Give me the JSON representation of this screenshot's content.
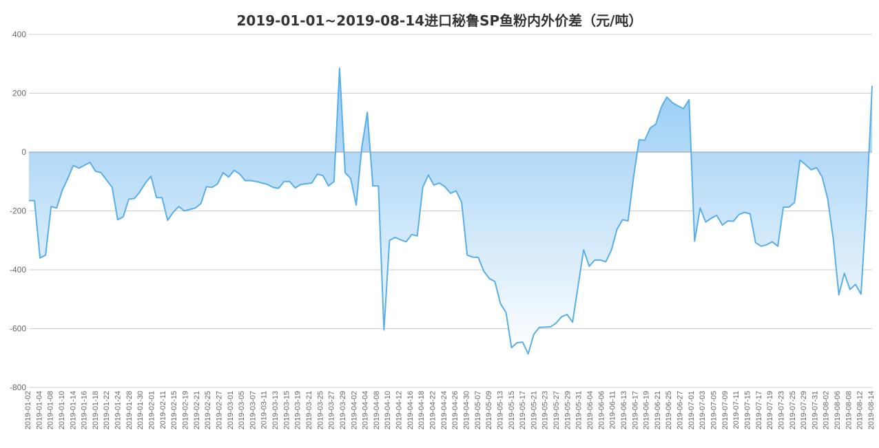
{
  "chart_data": {
    "type": "area",
    "title": "2019-01-01~2019-08-14进口秘鲁SP鱼粉内外价差（元/吨）",
    "xlabel": "",
    "ylabel": "",
    "ylim": [
      -800,
      400
    ],
    "yticks": [
      400,
      200,
      0,
      -200,
      -400,
      -600,
      -800
    ],
    "grid": true,
    "legend": "none",
    "colors": {
      "line": "#5aaee8",
      "fill_top": "#8ec7f3",
      "fill_bottom": "#ffffff",
      "grid": "#cccccc",
      "zero_line": "#999999"
    },
    "tick_labels": [
      "2019-01-02",
      "2019-01-04",
      "2019-01-08",
      "2019-01-10",
      "2019-01-14",
      "2019-01-16",
      "2019-01-18",
      "2019-01-22",
      "2019-01-24",
      "2019-01-28",
      "2019-01-30",
      "2019-02-01",
      "2019-02-11",
      "2019-02-15",
      "2019-02-19",
      "2019-02-21",
      "2019-02-25",
      "2019-02-27",
      "2019-03-01",
      "2019-03-05",
      "2019-03-07",
      "2019-03-11",
      "2019-03-13",
      "2019-03-15",
      "2019-03-19",
      "2019-03-21",
      "2019-03-25",
      "2019-03-27",
      "2019-03-29",
      "2019-04-02",
      "2019-04-04",
      "2019-04-08",
      "2019-04-10",
      "2019-04-12",
      "2019-04-16",
      "2019-04-18",
      "2019-04-22",
      "2019-04-24",
      "2019-04-26",
      "2019-04-30",
      "2019-05-07",
      "2019-05-09",
      "2019-05-13",
      "2019-05-15",
      "2019-05-17",
      "2019-05-21",
      "2019-05-23",
      "2019-05-27",
      "2019-05-29",
      "2019-05-31",
      "2019-06-04",
      "2019-06-06",
      "2019-06-11",
      "2019-06-13",
      "2019-06-17",
      "2019-06-19",
      "2019-06-21",
      "2019-06-25",
      "2019-06-27",
      "2019-07-01",
      "2019-07-03",
      "2019-07-05",
      "2019-07-09",
      "2019-07-11",
      "2019-07-15",
      "2019-07-17",
      "2019-07-19",
      "2019-07-23",
      "2019-07-25",
      "2019-07-29",
      "2019-07-31",
      "2019-08-02",
      "2019-08-06",
      "2019-08-08",
      "2019-08-12",
      "2019-08-14"
    ],
    "values": [
      -165,
      -165,
      -360,
      -350,
      -185,
      -190,
      -130,
      -90,
      -45,
      -55,
      -45,
      -35,
      -65,
      -70,
      -95,
      -120,
      -230,
      -220,
      -160,
      -158,
      -135,
      -105,
      -82,
      -155,
      -155,
      -232,
      -205,
      -185,
      -200,
      -195,
      -190,
      -175,
      -118,
      -120,
      -108,
      -70,
      -85,
      -62,
      -75,
      -97,
      -97,
      -100,
      -105,
      -110,
      -120,
      -123,
      -100,
      -100,
      -122,
      -110,
      -108,
      -105,
      -75,
      -80,
      -115,
      -100,
      285,
      -70,
      -90,
      -180,
      15,
      135,
      -115,
      -115,
      -605,
      -300,
      -290,
      -298,
      -305,
      -280,
      -285,
      -120,
      -78,
      -112,
      -105,
      -118,
      -140,
      -132,
      -170,
      -350,
      -357,
      -358,
      -405,
      -430,
      -440,
      -515,
      -545,
      -665,
      -648,
      -646,
      -686,
      -620,
      -596,
      -595,
      -594,
      -582,
      -560,
      -552,
      -578,
      -455,
      -332,
      -388,
      -367,
      -367,
      -373,
      -333,
      -263,
      -230,
      -234,
      -85,
      42,
      40,
      82,
      95,
      153,
      187,
      168,
      157,
      148,
      178,
      -303,
      -190,
      -238,
      -225,
      -215,
      -248,
      -234,
      -235,
      -212,
      -205,
      -210,
      -308,
      -320,
      -315,
      -305,
      -320,
      -187,
      -187,
      -172,
      -27,
      -43,
      -60,
      -53,
      -85,
      -160,
      -295,
      -485,
      -412,
      -467,
      -450,
      -483,
      -175,
      225
    ]
  }
}
